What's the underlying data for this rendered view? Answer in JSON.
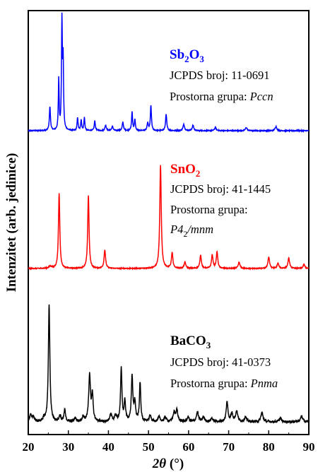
{
  "chart_data": {
    "type": "line",
    "title": "",
    "xlabel": {
      "symbol": "2θ",
      "unit": " (°)"
    },
    "ylabel": "Intenzitet (arb. jedinice)",
    "xlim": [
      20,
      90
    ],
    "xticks": [
      20,
      30,
      40,
      50,
      60,
      70,
      80,
      90
    ],
    "grid": false,
    "legend": "none",
    "series": [
      {
        "key": "sb2o3",
        "color": "#0000ff",
        "baseline": 0.0,
        "height": 1.0,
        "noise": 0.004,
        "peaks": [
          [
            25.4,
            0.22,
            0.16
          ],
          [
            27.6,
            0.47,
            0.12
          ],
          [
            28.4,
            1.0,
            0.13
          ],
          [
            28.7,
            0.61,
            0.12
          ],
          [
            32.3,
            0.12,
            0.14
          ],
          [
            33.2,
            0.1,
            0.14
          ],
          [
            34.0,
            0.12,
            0.14
          ],
          [
            36.6,
            0.09,
            0.16
          ],
          [
            39.3,
            0.05,
            0.2
          ],
          [
            41.0,
            0.04,
            0.2
          ],
          [
            43.6,
            0.08,
            0.18
          ],
          [
            45.9,
            0.17,
            0.15
          ],
          [
            46.6,
            0.1,
            0.15
          ],
          [
            49.8,
            0.07,
            0.18
          ],
          [
            50.6,
            0.23,
            0.16
          ],
          [
            54.4,
            0.15,
            0.18
          ],
          [
            58.8,
            0.06,
            0.22
          ],
          [
            61.1,
            0.05,
            0.22
          ],
          [
            66.7,
            0.03,
            0.25
          ],
          [
            74.4,
            0.03,
            0.25
          ],
          [
            81.8,
            0.04,
            0.25
          ]
        ]
      },
      {
        "key": "sno2",
        "color": "#ff0000",
        "baseline": 0.0,
        "height": 1.0,
        "noise": 0.004,
        "peaks": [
          [
            25.5,
            0.02,
            0.4
          ],
          [
            27.7,
            0.73,
            0.2
          ],
          [
            35.0,
            0.71,
            0.2
          ],
          [
            39.1,
            0.18,
            0.22
          ],
          [
            53.0,
            1.0,
            0.22
          ],
          [
            55.9,
            0.15,
            0.22
          ],
          [
            59.1,
            0.06,
            0.25
          ],
          [
            63.0,
            0.13,
            0.22
          ],
          [
            65.9,
            0.13,
            0.22
          ],
          [
            67.1,
            0.16,
            0.22
          ],
          [
            72.6,
            0.06,
            0.25
          ],
          [
            80.0,
            0.11,
            0.25
          ],
          [
            82.3,
            0.05,
            0.25
          ],
          [
            85.0,
            0.1,
            0.25
          ],
          [
            88.8,
            0.04,
            0.25
          ]
        ]
      },
      {
        "key": "baco3",
        "color": "#000000",
        "baseline": 0.0,
        "height": 1.0,
        "noise": 0.01,
        "peaks": [
          [
            20.6,
            0.06,
            0.3
          ],
          [
            21.3,
            0.04,
            0.3
          ],
          [
            23.9,
            0.03,
            0.25
          ],
          [
            25.2,
            1.0,
            0.22
          ],
          [
            27.9,
            0.05,
            0.25
          ],
          [
            29.1,
            0.1,
            0.22
          ],
          [
            31.7,
            0.03,
            0.3
          ],
          [
            33.7,
            0.04,
            0.3
          ],
          [
            35.3,
            0.4,
            0.26
          ],
          [
            36.0,
            0.22,
            0.22
          ],
          [
            40.6,
            0.06,
            0.3
          ],
          [
            41.8,
            0.05,
            0.3
          ],
          [
            43.2,
            0.46,
            0.2
          ],
          [
            44.1,
            0.18,
            0.2
          ],
          [
            45.9,
            0.39,
            0.22
          ],
          [
            46.6,
            0.16,
            0.22
          ],
          [
            47.9,
            0.33,
            0.2
          ],
          [
            50.4,
            0.05,
            0.3
          ],
          [
            52.6,
            0.04,
            0.3
          ],
          [
            54.2,
            0.04,
            0.3
          ],
          [
            56.4,
            0.08,
            0.3
          ],
          [
            57.1,
            0.1,
            0.25
          ],
          [
            59.9,
            0.04,
            0.3
          ],
          [
            62.2,
            0.08,
            0.3
          ],
          [
            63.7,
            0.04,
            0.3
          ],
          [
            65.8,
            0.03,
            0.3
          ],
          [
            69.6,
            0.17,
            0.25
          ],
          [
            70.8,
            0.07,
            0.3
          ],
          [
            72.0,
            0.09,
            0.3
          ],
          [
            74.2,
            0.04,
            0.3
          ],
          [
            78.3,
            0.08,
            0.3
          ],
          [
            82.9,
            0.03,
            0.3
          ],
          [
            88.2,
            0.05,
            0.3
          ]
        ]
      }
    ],
    "annotations": [
      {
        "key": "sb2o3",
        "formula": [
          "Sb",
          "2",
          "O",
          "3"
        ],
        "jcpds": "JCPDS broj: 11-0691",
        "group_prefix": "Prostorna grupa: ",
        "group": "Pccn"
      },
      {
        "key": "sno2",
        "formula": [
          "SnO",
          "2"
        ],
        "jcpds": "JCPDS broj: 41-1445",
        "group_prefix": "Prostorna grupa:",
        "group_main": "P4",
        "group_sub": "2",
        "group_rest": "/mnm"
      },
      {
        "key": "baco3",
        "formula": [
          "BaCO",
          "3"
        ],
        "jcpds": "JCPDS broj: 41-0373",
        "group_prefix": "Prostorna grupa: ",
        "group": "Pnma"
      }
    ]
  }
}
